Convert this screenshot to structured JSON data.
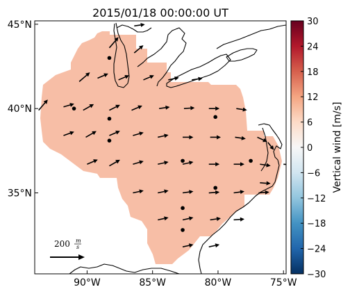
{
  "title": "2015/01/18 00:00:00 UT",
  "map": {
    "lon_ticks": [
      {
        "value": -90,
        "label": "90°W"
      },
      {
        "value": -85,
        "label": "85°W"
      },
      {
        "value": -80,
        "label": "80°W"
      },
      {
        "value": -75,
        "label": "75°W"
      }
    ],
    "lat_ticks": [
      {
        "value": 45,
        "label": "45°N"
      },
      {
        "value": 40,
        "label": "40°N"
      },
      {
        "value": 35,
        "label": "35°N"
      }
    ],
    "region_fill_color": "#f7bea6",
    "coastline_color": "#000000",
    "vector_color": "#000000",
    "scale_arrow": {
      "value": 200,
      "label_value": "200",
      "label_unit_num": "m",
      "label_unit_den": "s"
    }
  },
  "colorbar": {
    "label": "Vertical wind [m/s]",
    "min": -30,
    "max": 30,
    "ticks": [
      "30",
      "24",
      "18",
      "12",
      "6",
      "0",
      "−6",
      "−12",
      "−18",
      "−24",
      "−30"
    ],
    "colormap": [
      "#053061",
      "#2166ac",
      "#4393c3",
      "#92c5de",
      "#d1e5f0",
      "#f7f7f7",
      "#fddbc7",
      "#f4a582",
      "#d6604d",
      "#b2182b",
      "#67001f"
    ]
  },
  "chart_data": {
    "type": "quiver_map",
    "title": "2015/01/18 00:00:00 UT",
    "xlabel": "",
    "ylabel": "",
    "xlim": [
      -94,
      -74.8
    ],
    "ylim": [
      30.2,
      45.2
    ],
    "vertical_wind_uniform": 6,
    "vectors": [
      {
        "lon": -88.3,
        "lat": 43.6,
        "u": 1.2,
        "v": 1.4
      },
      {
        "lon": -86.4,
        "lat": 43.3,
        "u": 1.2,
        "v": 1.0
      },
      {
        "lon": -86.4,
        "lat": 44.9,
        "u": 1.4,
        "v": 0.2
      },
      {
        "lon": -90.6,
        "lat": 41.6,
        "u": 1.4,
        "v": 1.2
      },
      {
        "lon": -89.2,
        "lat": 41.8,
        "u": 1.4,
        "v": 0.6
      },
      {
        "lon": -87.6,
        "lat": 41.7,
        "u": 1.4,
        "v": 0.6
      },
      {
        "lon": -85.7,
        "lat": 41.7,
        "u": 1.4,
        "v": 0.6
      },
      {
        "lon": -83.8,
        "lat": 41.7,
        "u": 1.4,
        "v": 0.3
      },
      {
        "lon": -82.0,
        "lat": 41.7,
        "u": 1.4,
        "v": 0.2
      },
      {
        "lon": -93.7,
        "lat": 39.9,
        "u": 1.2,
        "v": 1.4
      },
      {
        "lon": -91.8,
        "lat": 40.1,
        "u": 1.4,
        "v": 0.4
      },
      {
        "lon": -90.3,
        "lat": 39.9,
        "u": 1.4,
        "v": 0.8
      },
      {
        "lon": -88.3,
        "lat": 39.9,
        "u": 1.4,
        "v": 0.7
      },
      {
        "lon": -86.6,
        "lat": 39.9,
        "u": 1.4,
        "v": 0.6
      },
      {
        "lon": -84.5,
        "lat": 40.0,
        "u": 1.4,
        "v": 0.2
      },
      {
        "lon": -82.6,
        "lat": 40.0,
        "u": 1.4,
        "v": 0.1
      },
      {
        "lon": -80.7,
        "lat": 40.0,
        "u": 1.4,
        "v": 0.0
      },
      {
        "lon": -78.6,
        "lat": 40.0,
        "u": 1.4,
        "v": -0.2
      },
      {
        "lon": -91.8,
        "lat": 38.4,
        "u": 1.4,
        "v": 0.5
      },
      {
        "lon": -90.1,
        "lat": 38.3,
        "u": 1.4,
        "v": 0.8
      },
      {
        "lon": -88.3,
        "lat": 38.4,
        "u": 1.4,
        "v": 0.6
      },
      {
        "lon": -86.5,
        "lat": 38.4,
        "u": 1.4,
        "v": 0.4
      },
      {
        "lon": -84.6,
        "lat": 38.3,
        "u": 1.4,
        "v": 0.3
      },
      {
        "lon": -82.7,
        "lat": 38.3,
        "u": 1.4,
        "v": 0.0
      },
      {
        "lon": -80.6,
        "lat": 38.3,
        "u": 1.4,
        "v": 0.0
      },
      {
        "lon": -78.7,
        "lat": 38.3,
        "u": 1.4,
        "v": -0.2
      },
      {
        "lon": -77.0,
        "lat": 38.3,
        "u": 1.3,
        "v": -0.6
      },
      {
        "lon": -76.2,
        "lat": 38.0,
        "u": 0.8,
        "v": -1.0
      },
      {
        "lon": -90.0,
        "lat": 36.7,
        "u": 1.4,
        "v": 0.6
      },
      {
        "lon": -88.3,
        "lat": 36.6,
        "u": 1.4,
        "v": 0.8
      },
      {
        "lon": -86.5,
        "lat": 36.7,
        "u": 1.4,
        "v": 0.4
      },
      {
        "lon": -84.6,
        "lat": 36.7,
        "u": 1.4,
        "v": 0.3
      },
      {
        "lon": -82.7,
        "lat": 36.7,
        "u": 1.4,
        "v": 0.3
      },
      {
        "lon": -80.7,
        "lat": 36.7,
        "u": 1.4,
        "v": 0.0
      },
      {
        "lon": -78.8,
        "lat": 36.7,
        "u": 1.4,
        "v": 0.0
      },
      {
        "lon": -76.8,
        "lat": 36.7,
        "u": 1.4,
        "v": -0.2
      },
      {
        "lon": -75.0,
        "lat": 36.7,
        "u": 1.4,
        "v": -0.1
      },
      {
        "lon": -86.5,
        "lat": 35.0,
        "u": 1.4,
        "v": 0.3
      },
      {
        "lon": -84.6,
        "lat": 35.0,
        "u": 1.4,
        "v": 0.3
      },
      {
        "lon": -82.7,
        "lat": 35.0,
        "u": 1.4,
        "v": 0.2
      },
      {
        "lon": -80.7,
        "lat": 35.0,
        "u": 1.4,
        "v": 0.1
      },
      {
        "lon": -78.8,
        "lat": 35.0,
        "u": 1.4,
        "v": 0.2
      },
      {
        "lon": -76.9,
        "lat": 35.0,
        "u": 1.4,
        "v": 0.1
      },
      {
        "lon": -76.8,
        "lat": 35.6,
        "u": 1.4,
        "v": -0.1
      },
      {
        "lon": -84.6,
        "lat": 33.4,
        "u": 1.4,
        "v": 0.3
      },
      {
        "lon": -82.7,
        "lat": 33.4,
        "u": 1.4,
        "v": 0.3
      },
      {
        "lon": -80.6,
        "lat": 33.4,
        "u": 1.4,
        "v": 0.2
      },
      {
        "lon": -78.8,
        "lat": 33.4,
        "u": 1.4,
        "v": 0.1
      },
      {
        "lon": -82.7,
        "lat": 31.8,
        "u": 1.4,
        "v": 0.3
      },
      {
        "lon": -80.7,
        "lat": 31.8,
        "u": 1.4,
        "v": 0.3
      }
    ],
    "stations": [
      {
        "lon": -88.3,
        "lat": 43.0
      },
      {
        "lon": -91.0,
        "lat": 40.0
      },
      {
        "lon": -88.3,
        "lat": 39.4
      },
      {
        "lon": -88.3,
        "lat": 38.1
      },
      {
        "lon": -80.2,
        "lat": 39.5
      },
      {
        "lon": -82.7,
        "lat": 36.9
      },
      {
        "lon": -77.5,
        "lat": 36.9
      },
      {
        "lon": -80.2,
        "lat": 35.3
      },
      {
        "lon": -82.7,
        "lat": 34.1
      },
      {
        "lon": -82.7,
        "lat": 32.8
      }
    ]
  }
}
